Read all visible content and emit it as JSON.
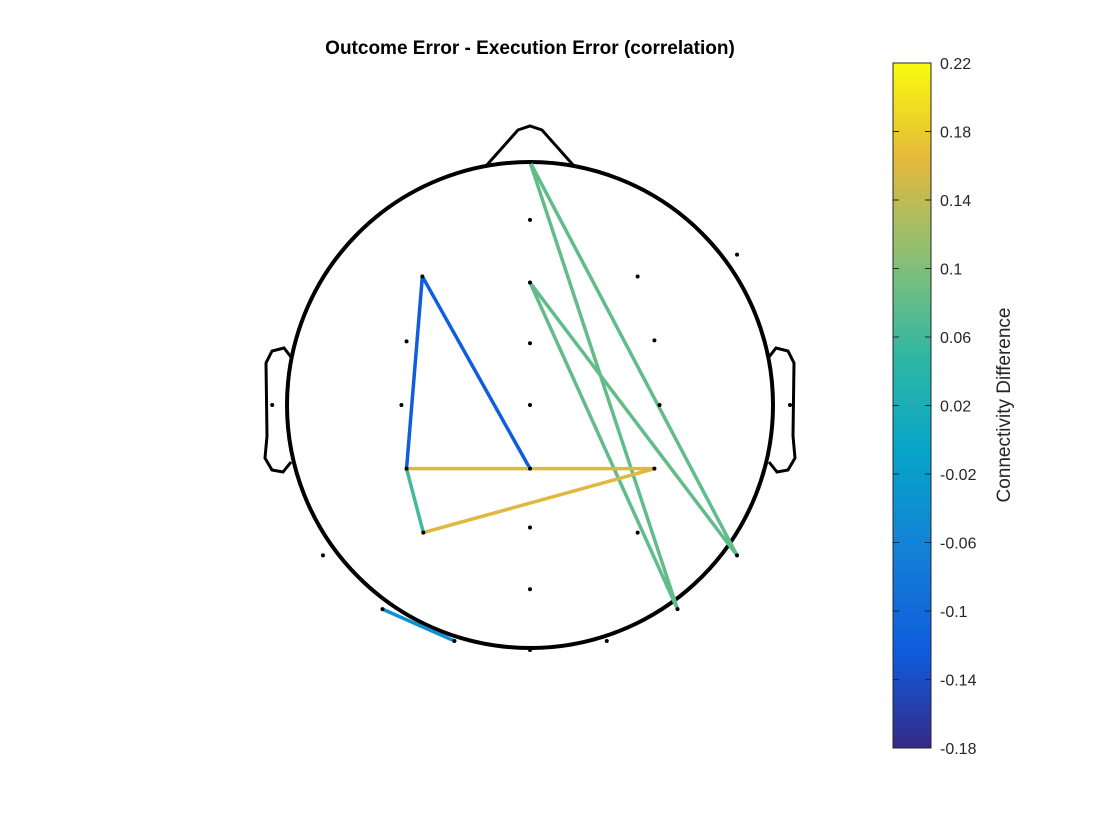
{
  "chart_data": {
    "type": "topographic-connectivity",
    "title": "Outcome Error - Execution Error (correlation)",
    "colorbar": {
      "label": "Connectivity Difference",
      "range": [
        -0.18,
        0.22
      ],
      "ticks": [
        "0.22",
        "0.18",
        "0.14",
        "0.1",
        "0.06",
        "0.02",
        "-0.02",
        "-0.06",
        "-0.1",
        "-0.14",
        "-0.18"
      ],
      "tick_values": [
        0.22,
        0.18,
        0.14,
        0.1,
        0.06,
        0.02,
        -0.02,
        -0.06,
        -0.1,
        -0.14,
        -0.18
      ],
      "colormap": "parula"
    },
    "channels": [
      {
        "id": "c1",
        "x": 0.0,
        "y": 1.0
      },
      {
        "id": "c2",
        "x": 0.0,
        "y": 0.762
      },
      {
        "id": "c3",
        "x": 0.852,
        "y": 0.619
      },
      {
        "id": "c4",
        "x": 0.443,
        "y": 0.529
      },
      {
        "id": "c5",
        "x": 0.0,
        "y": 0.504
      },
      {
        "id": "c6",
        "x": -0.443,
        "y": 0.529
      },
      {
        "id": "c7",
        "x": -0.508,
        "y": 0.262
      },
      {
        "id": "c8",
        "x": 0.0,
        "y": 0.254
      },
      {
        "id": "c9",
        "x": 0.512,
        "y": 0.266
      },
      {
        "id": "c10",
        "x": -1.061,
        "y": 0.0
      },
      {
        "id": "c11",
        "x": -0.529,
        "y": 0.0
      },
      {
        "id": "c12",
        "x": 0.0,
        "y": 0.0
      },
      {
        "id": "c13",
        "x": 0.533,
        "y": 0.0
      },
      {
        "id": "c14",
        "x": 1.07,
        "y": 0.0
      },
      {
        "id": "c15",
        "x": -0.508,
        "y": -0.262
      },
      {
        "id": "c16",
        "x": 0.0,
        "y": -0.262
      },
      {
        "id": "c17",
        "x": 0.512,
        "y": -0.262
      },
      {
        "id": "c18",
        "x": -0.439,
        "y": -0.525
      },
      {
        "id": "c19",
        "x": 0.0,
        "y": -0.504
      },
      {
        "id": "c20",
        "x": 0.443,
        "y": -0.525
      },
      {
        "id": "c21",
        "x": -0.852,
        "y": -0.619
      },
      {
        "id": "c22",
        "x": 0.852,
        "y": -0.619
      },
      {
        "id": "c23",
        "x": 0.0,
        "y": -0.758
      },
      {
        "id": "c24",
        "x": -0.607,
        "y": -0.84
      },
      {
        "id": "c25",
        "x": 0.607,
        "y": -0.84
      },
      {
        "id": "c26",
        "x": -0.311,
        "y": -0.971
      },
      {
        "id": "c27",
        "x": 0.316,
        "y": -0.971
      },
      {
        "id": "c28",
        "x": 0.0,
        "y": -1.008
      }
    ],
    "connections": [
      {
        "from": "c1",
        "to": "c22",
        "value": 0.08
      },
      {
        "from": "c1",
        "to": "c25",
        "value": 0.08
      },
      {
        "from": "c5",
        "to": "c22",
        "value": 0.08
      },
      {
        "from": "c5",
        "to": "c25",
        "value": 0.08
      },
      {
        "from": "c6",
        "to": "c15",
        "value": -0.12
      },
      {
        "from": "c6",
        "to": "c16",
        "value": -0.12
      },
      {
        "from": "c15",
        "to": "c17",
        "value": 0.16
      },
      {
        "from": "c18",
        "to": "c17",
        "value": 0.16
      },
      {
        "from": "c15",
        "to": "c18",
        "value": 0.06
      },
      {
        "from": "c24",
        "to": "c26",
        "value": -0.04
      }
    ]
  }
}
